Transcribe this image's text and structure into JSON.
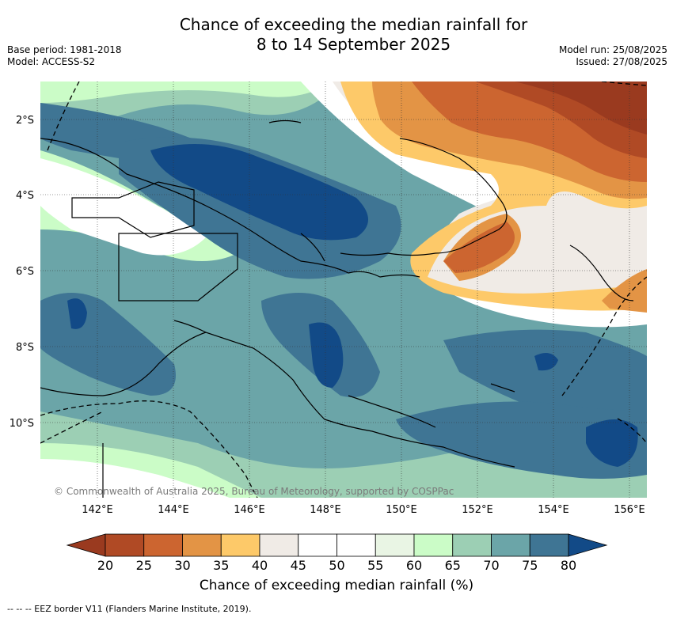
{
  "title": {
    "line1": "Chance of exceeding the median rainfall for",
    "line2": "8 to 14 September 2025"
  },
  "meta_left": {
    "base_period": "Base period: 1981-2018",
    "model": "Model: ACCESS-S2"
  },
  "meta_right": {
    "model_run": "Model run: 25/08/2025",
    "issued": "Issued: 27/08/2025"
  },
  "map": {
    "lon_ticks": [
      "142°E",
      "144°E",
      "146°E",
      "148°E",
      "150°E",
      "152°E",
      "154°E",
      "156°E"
    ],
    "lat_ticks": [
      "2°S",
      "4°S",
      "6°S",
      "8°S",
      "10°S"
    ],
    "copyright": "© Commonwealth of Australia 2025, Bureau of Meteorology, supported by COSPPac",
    "colors": {
      "c20": "#9a3a1f",
      "c25": "#b04a25",
      "c30": "#cc6530",
      "c35": "#e39445",
      "c40": "#fdc969",
      "c45": "#f0ebe6",
      "c50": "#ffffff",
      "c55": "#ffffff",
      "c60": "#e9f5e4",
      "c65": "#cbfcc7",
      "c70": "#9ccfb4",
      "c75": "#6ba5a8",
      "c80": "#3f7594",
      "c85": "#124a87"
    }
  },
  "colorbar": {
    "labels": [
      "20",
      "25",
      "30",
      "35",
      "40",
      "45",
      "50",
      "55",
      "60",
      "65",
      "70",
      "75",
      "80"
    ],
    "title": "Chance of exceeding median rainfall (%)",
    "colors": [
      "#b04a25",
      "#cc6530",
      "#e39445",
      "#fdc969",
      "#f0ebe6",
      "#ffffff",
      "#ffffff",
      "#e9f5e4",
      "#cbfcc7",
      "#9ccfb4",
      "#6ba5a8",
      "#3f7594"
    ],
    "low_arrow_color": "#9a3a1f",
    "high_arrow_color": "#124a87"
  },
  "footnote": "-- -- -- EEZ border V11 (Flanders Marine Institute, 2019)."
}
